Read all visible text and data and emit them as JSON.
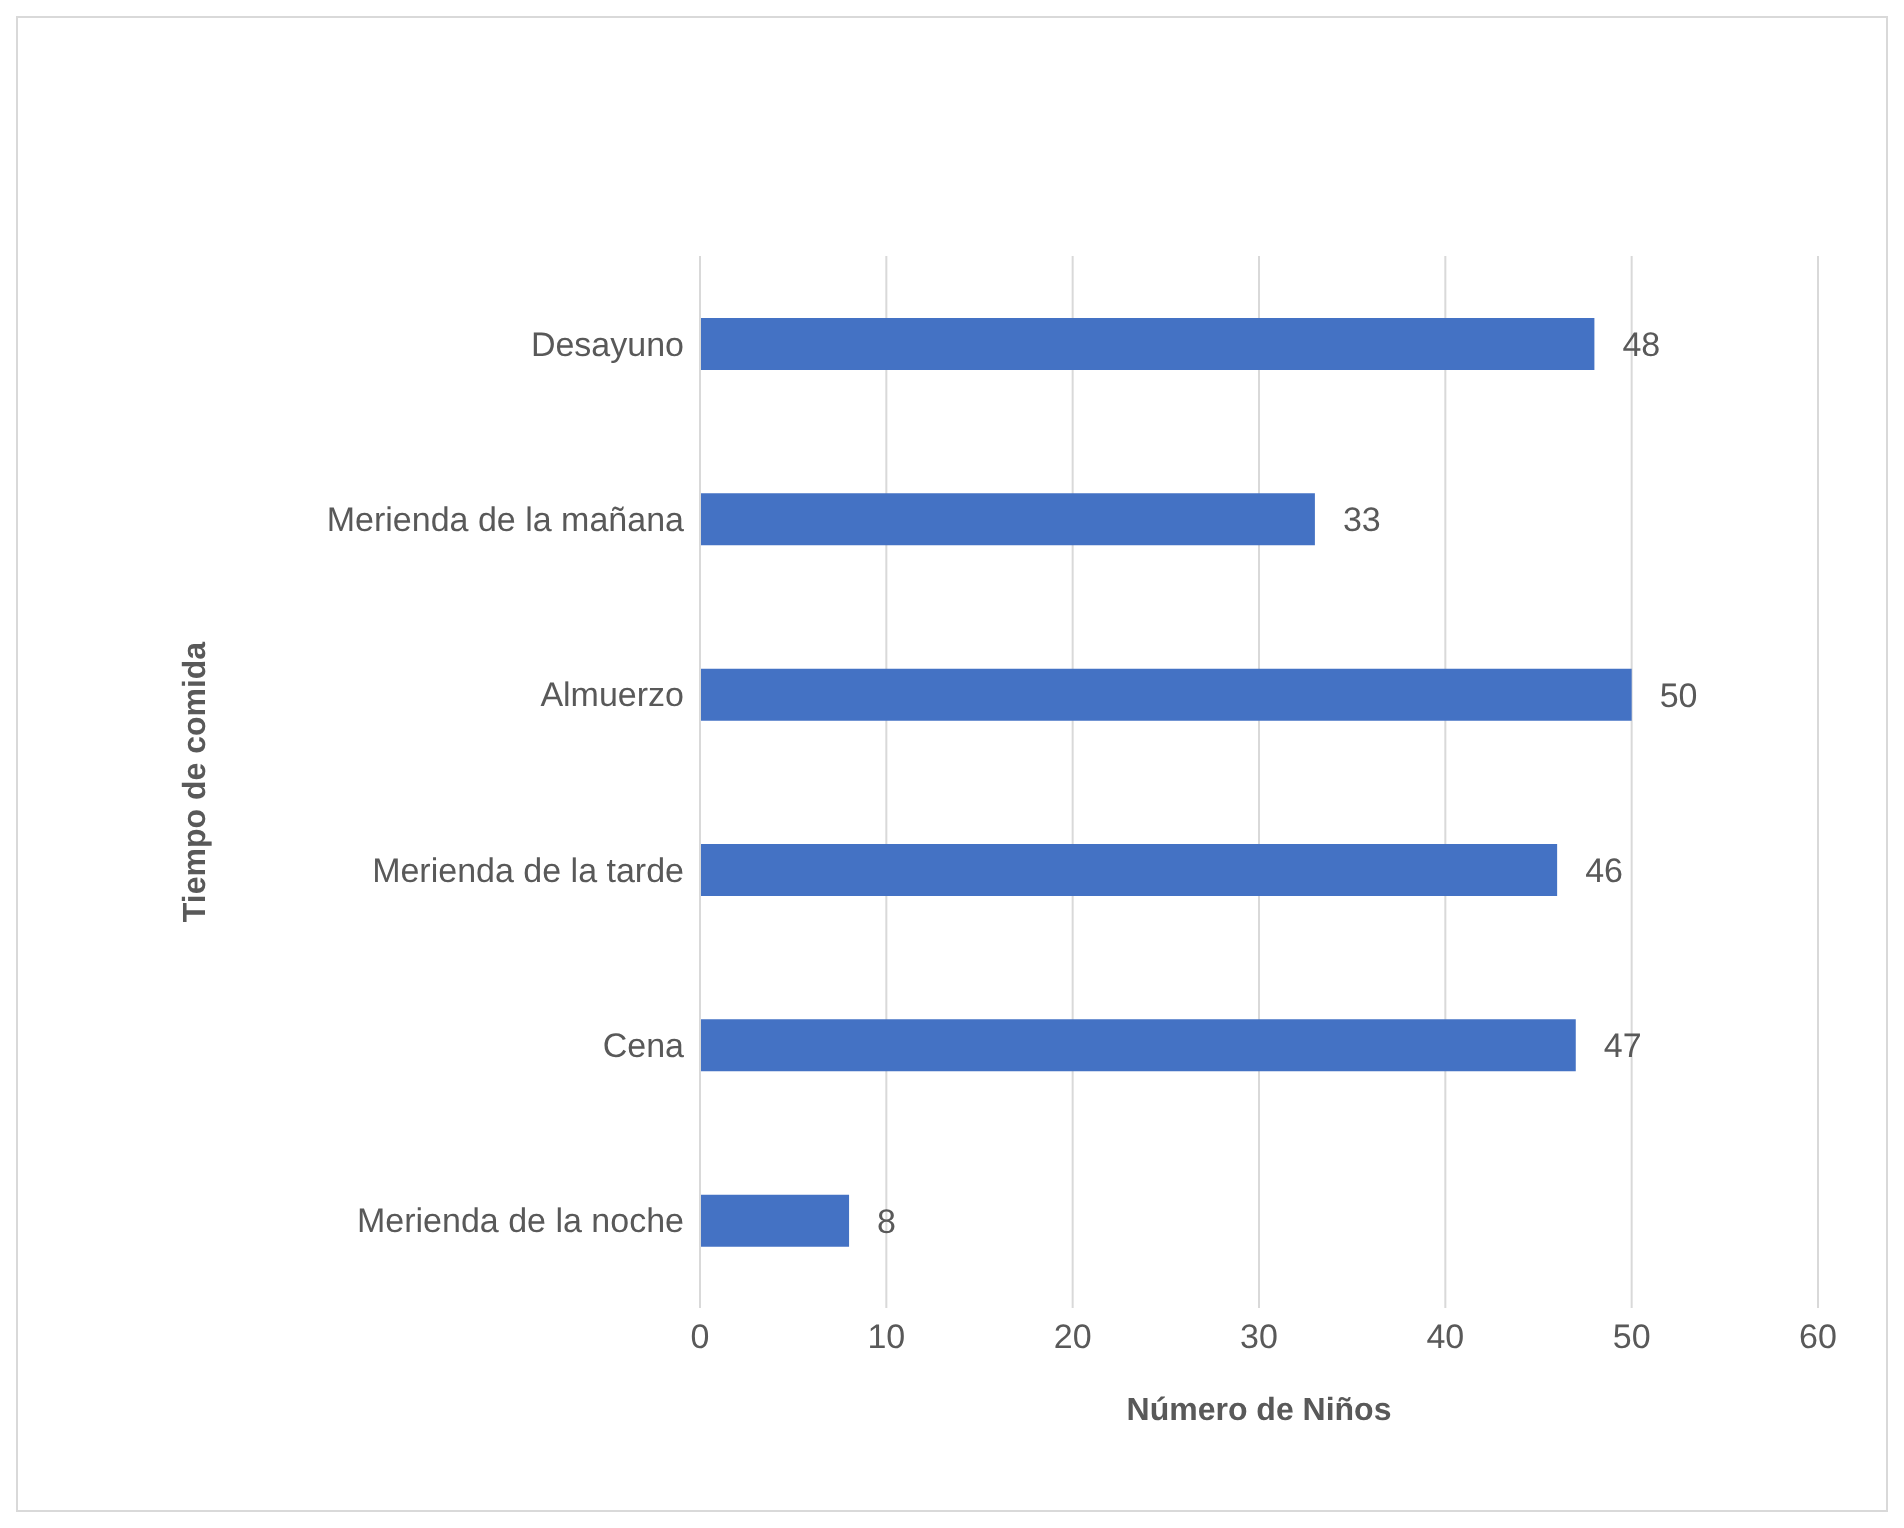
{
  "chart_data": {
    "type": "bar",
    "orientation": "horizontal",
    "xlabel": "Número de Niños",
    "ylabel": "Tiempo de comida",
    "categories": [
      "Desayuno",
      "Merienda de la mañana",
      "Almuerzo",
      "Merienda de la tarde",
      "Cena",
      "Merienda de la noche"
    ],
    "values": [
      48,
      33,
      50,
      46,
      47,
      8
    ],
    "color": "#4472c4",
    "xlim": [
      0,
      60
    ],
    "xticks": [
      0,
      10,
      20,
      30,
      40,
      50,
      60
    ],
    "grid": "x",
    "data_labels": true
  }
}
